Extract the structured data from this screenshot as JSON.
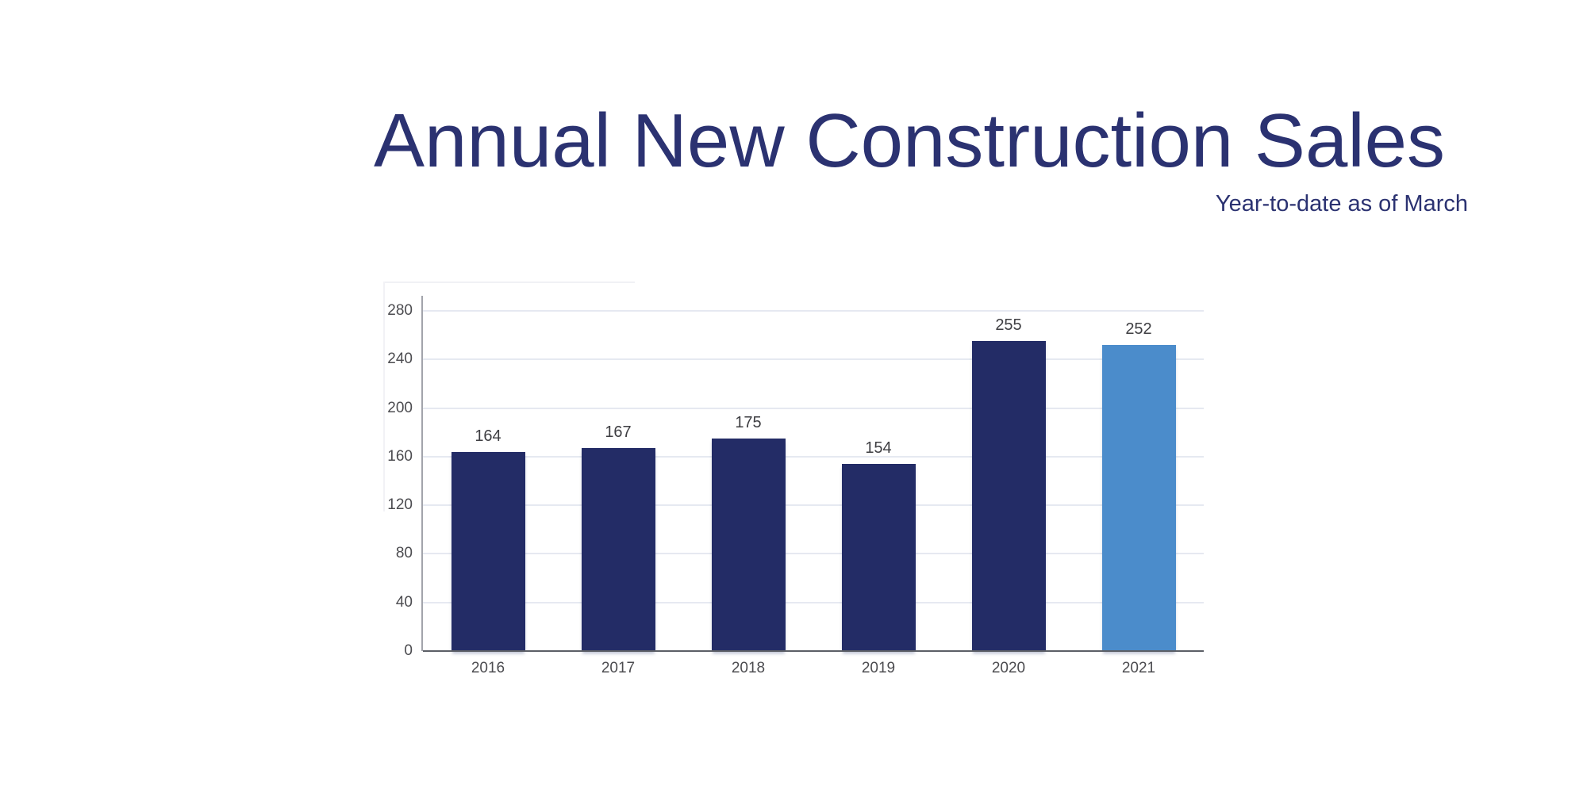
{
  "header": {
    "title": "Annual New Construction Sales",
    "subtitle": "Year-to-date as of March"
  },
  "chart_data": {
    "type": "bar",
    "title": "Annual New Construction Sales",
    "subtitle": "Year-to-date as of March",
    "categories": [
      "2016",
      "2017",
      "2018",
      "2019",
      "2020",
      "2021"
    ],
    "values": [
      164,
      167,
      175,
      154,
      255,
      252
    ],
    "data_labels": [
      "164",
      "167",
      "175",
      "154",
      "255",
      "252"
    ],
    "bar_colors": [
      "#232c66",
      "#232c66",
      "#232c66",
      "#232c66",
      "#232c66",
      "#4b8ccb"
    ],
    "highlighted_category": "2021",
    "xlabel": "",
    "ylabel": "",
    "ylim": [
      0,
      280
    ],
    "yticks": [
      0,
      40,
      80,
      120,
      160,
      200,
      240,
      280
    ],
    "grid": "horizontal",
    "legend_position": "none",
    "colors": {
      "primary_bar": "#232c66",
      "highlight_bar": "#4b8ccb",
      "title_text": "#2b3271",
      "gridline": "#e6e9f1",
      "baseline": "#5c5f66",
      "y_axis_line": "#a2a4ab",
      "tick_text": "#4c4c50",
      "value_text": "#3e3e42",
      "background": "#ffffff"
    }
  }
}
